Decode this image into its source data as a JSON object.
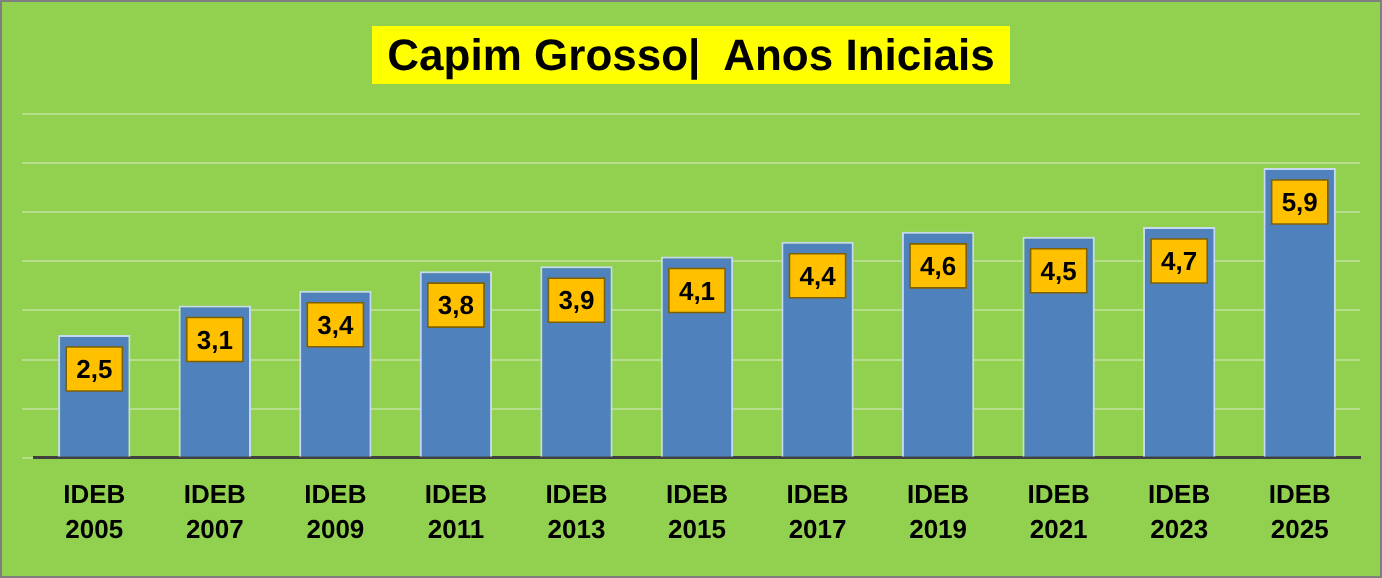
{
  "chart_data": {
    "type": "bar",
    "title": "Capim Grosso|  Anos Iniciais",
    "categories": [
      "IDEB 2005",
      "IDEB 2007",
      "IDEB 2009",
      "IDEB 2011",
      "IDEB 2013",
      "IDEB 2015",
      "IDEB 2017",
      "IDEB 2019",
      "IDEB 2021",
      "IDEB 2023",
      "IDEB 2025"
    ],
    "values": [
      2.5,
      3.1,
      3.4,
      3.8,
      3.9,
      4.1,
      4.4,
      4.6,
      4.5,
      4.7,
      5.9
    ],
    "value_labels": [
      "2,5",
      "3,1",
      "3,4",
      "3,8",
      "3,9",
      "4,1",
      "4,4",
      "4,6",
      "4,5",
      "4,7",
      "5,9"
    ],
    "color": "#4f81bd",
    "ylim": [
      0,
      7
    ],
    "yticks": [
      {
        "value": 0,
        "label": null
      },
      {
        "value": 1,
        "label": null
      },
      {
        "value": 2,
        "label": null
      },
      {
        "value": 3,
        "label": null
      },
      {
        "value": 4,
        "label": null
      },
      {
        "value": 5,
        "label": null
      },
      {
        "value": 6,
        "label": null
      },
      {
        "value": 7,
        "label": null
      }
    ],
    "tick_labels": "x",
    "grid": "y"
  }
}
